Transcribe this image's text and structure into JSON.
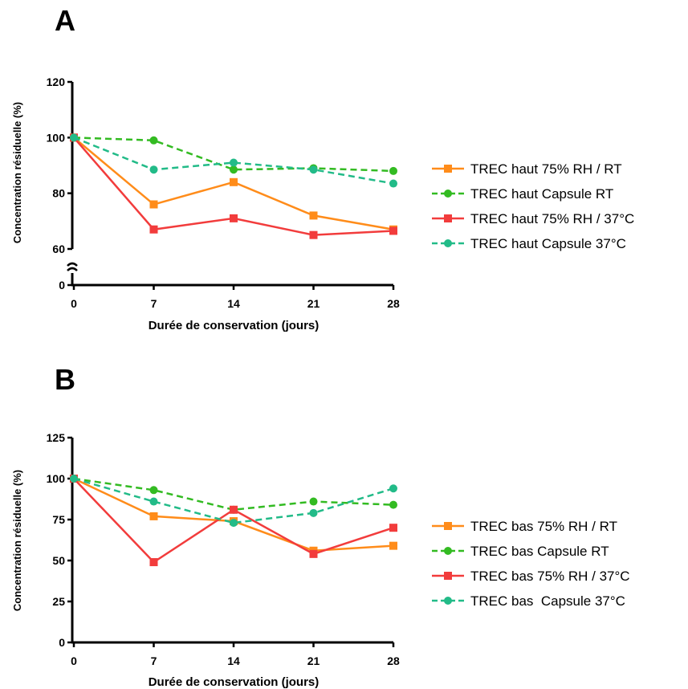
{
  "chart_data": [
    {
      "type": "line",
      "panel_label": "A",
      "xlabel": "Durée de conservation (jours)",
      "ylabel": "Concentration résiduelle (%)",
      "x": [
        0,
        7,
        14,
        21,
        28
      ],
      "x_ticks": [
        "0",
        "7",
        "14",
        "21",
        "28"
      ],
      "y_ticks": [
        "0",
        "60",
        "80",
        "100",
        "120"
      ],
      "ylim": [
        0,
        120
      ],
      "y_axis_break": [
        0,
        60
      ],
      "legend_position": "right",
      "series": [
        {
          "name": "TREC haut 75% RH / RT",
          "color": "#ff8c1a",
          "marker": "square",
          "dashed": false,
          "values": [
            100,
            76,
            84,
            72,
            67
          ]
        },
        {
          "name": "TREC haut Capsule RT",
          "color": "#33bb22",
          "marker": "circle",
          "dashed": true,
          "values": [
            100,
            99,
            88.5,
            89,
            88
          ]
        },
        {
          "name": "TREC haut 75% RH / 37°C",
          "color": "#f23c3c",
          "marker": "square",
          "dashed": false,
          "values": [
            100,
            67,
            71,
            65,
            66.5
          ]
        },
        {
          "name": "TREC haut Capsule 37°C",
          "color": "#22bb88",
          "marker": "circle",
          "dashed": true,
          "values": [
            100,
            88.5,
            91,
            88.5,
            83.5
          ]
        }
      ]
    },
    {
      "type": "line",
      "panel_label": "B",
      "xlabel": "Durée de conservation (jours)",
      "ylabel": "Concentration résiduelle (%)",
      "x": [
        0,
        7,
        14,
        21,
        28
      ],
      "x_ticks": [
        "0",
        "7",
        "14",
        "21",
        "28"
      ],
      "y_ticks": [
        "0",
        "25",
        "50",
        "75",
        "100",
        "125"
      ],
      "ylim": [
        0,
        125
      ],
      "legend_position": "right",
      "series": [
        {
          "name": "TREC bas 75% RH / RT",
          "color": "#ff8c1a",
          "marker": "square",
          "dashed": false,
          "values": [
            100,
            77,
            74,
            56,
            59
          ]
        },
        {
          "name": "TREC bas Capsule RT",
          "color": "#33bb22",
          "marker": "circle",
          "dashed": true,
          "values": [
            100,
            93,
            81,
            86,
            84
          ]
        },
        {
          "name": "TREC bas 75% RH / 37°C",
          "color": "#f23c3c",
          "marker": "square",
          "dashed": false,
          "values": [
            100,
            49,
            81,
            54,
            70
          ]
        },
        {
          "name": "TREC bas  Capsule 37°C",
          "color": "#22bb88",
          "marker": "circle",
          "dashed": true,
          "values": [
            100,
            86,
            73,
            79,
            94
          ]
        }
      ]
    }
  ]
}
